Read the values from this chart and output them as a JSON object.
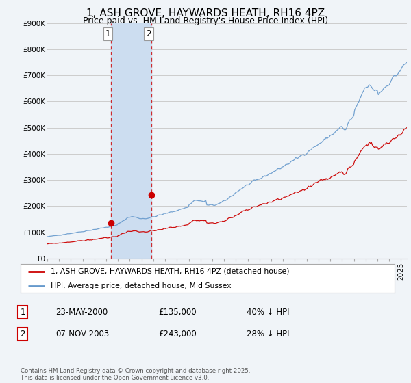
{
  "title": "1, ASH GROVE, HAYWARDS HEATH, RH16 4PZ",
  "subtitle": "Price paid vs. HM Land Registry's House Price Index (HPI)",
  "ylim": [
    0,
    900000
  ],
  "yticks": [
    0,
    100000,
    200000,
    300000,
    400000,
    500000,
    600000,
    700000,
    800000,
    900000
  ],
  "ytick_labels": [
    "£0",
    "£100K",
    "£200K",
    "£300K",
    "£400K",
    "£500K",
    "£600K",
    "£700K",
    "£800K",
    "£900K"
  ],
  "xlim_start": 1995.0,
  "xlim_end": 2025.5,
  "red_line_color": "#cc0000",
  "blue_line_color": "#6699cc",
  "shade_color": "#ccddf0",
  "transaction1_date": 2000.39,
  "transaction1_price": 135000,
  "transaction2_date": 2003.85,
  "transaction2_price": 243000,
  "legend_line1": "1, ASH GROVE, HAYWARDS HEATH, RH16 4PZ (detached house)",
  "legend_line2": "HPI: Average price, detached house, Mid Sussex",
  "footnote": "Contains HM Land Registry data © Crown copyright and database right 2025.\nThis data is licensed under the Open Government Licence v3.0.",
  "table_rows": [
    {
      "num": "1",
      "date": "23-MAY-2000",
      "price": "£135,000",
      "pct": "40% ↓ HPI"
    },
    {
      "num": "2",
      "date": "07-NOV-2003",
      "price": "£243,000",
      "pct": "28% ↓ HPI"
    }
  ],
  "bg_color": "#f0f4f8",
  "plot_bg_color": "#f0f4f8",
  "grid_color": "#cccccc",
  "title_fontsize": 11,
  "subtitle_fontsize": 9,
  "tick_fontsize": 7.5
}
